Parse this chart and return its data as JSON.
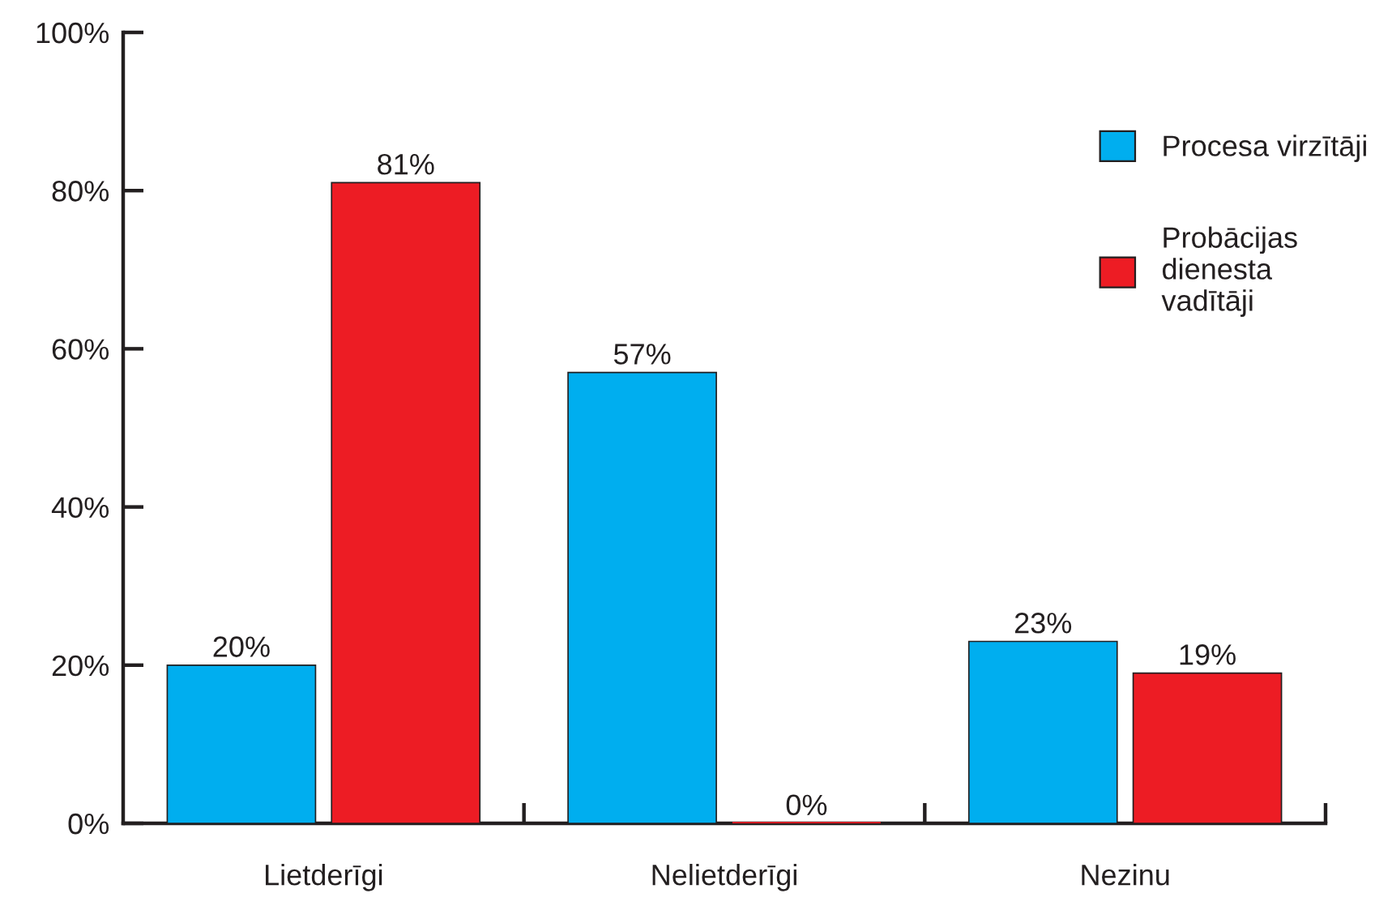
{
  "chart_data": {
    "type": "bar",
    "categories": [
      "Lietderīgi",
      "Nelietderīgi",
      "Nezinu"
    ],
    "series": [
      {
        "name": "Procesa virzītāji",
        "color": "#00aeef",
        "values": [
          20,
          57,
          23
        ],
        "value_labels": [
          "20%",
          "57%",
          "23%"
        ]
      },
      {
        "name": "Probācijas\ndienesta\nvadītāji",
        "color": "#ed1c24",
        "values": [
          81,
          0,
          19
        ],
        "value_labels": [
          "81%",
          "0%",
          "19%"
        ]
      }
    ],
    "ylim": [
      0,
      100
    ],
    "yticks": [
      {
        "value": 0,
        "label": "0%"
      },
      {
        "value": 20,
        "label": "20%"
      },
      {
        "value": 40,
        "label": "40%"
      },
      {
        "value": 60,
        "label": "60%"
      },
      {
        "value": 80,
        "label": "80%"
      },
      {
        "value": 100,
        "label": "100%"
      }
    ],
    "grid": false,
    "legend": "top right"
  }
}
